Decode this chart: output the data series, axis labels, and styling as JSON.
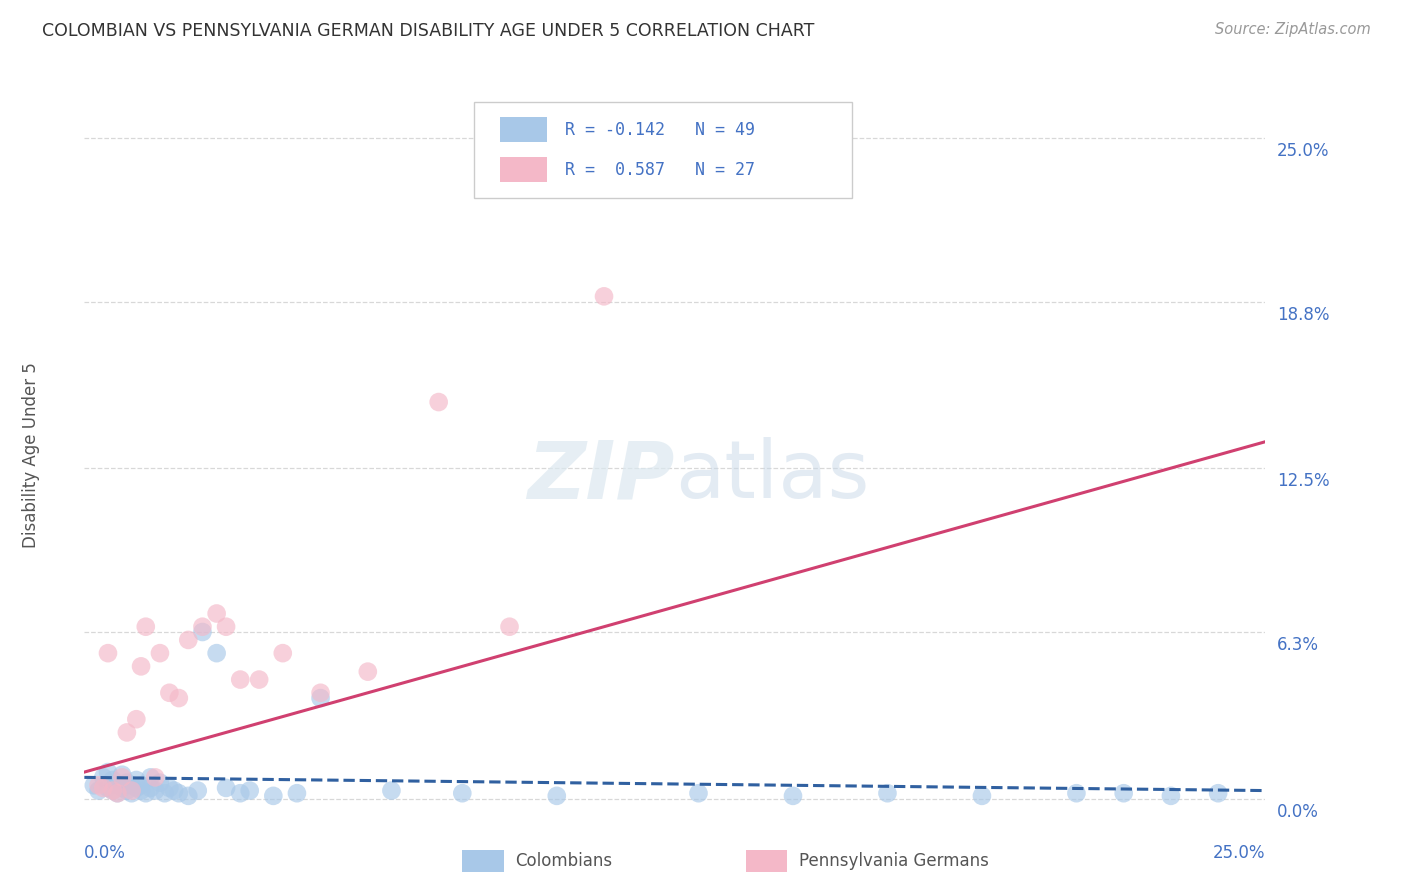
{
  "title": "COLOMBIAN VS PENNSYLVANIA GERMAN DISABILITY AGE UNDER 5 CORRELATION CHART",
  "source": "Source: ZipAtlas.com",
  "ylabel": "Disability Age Under 5",
  "xlim": [
    0.0,
    0.25
  ],
  "ylim": [
    -0.005,
    0.265
  ],
  "ytick_values": [
    0.0,
    0.063,
    0.125,
    0.188,
    0.25
  ],
  "ytick_labels": [
    "0.0%",
    "6.3%",
    "12.5%",
    "18.8%",
    "25.0%"
  ],
  "xtick_values": [
    0.0,
    0.25
  ],
  "xtick_labels": [
    "0.0%",
    "25.0%"
  ],
  "color_colombian": "#a8c8e8",
  "color_pa_german": "#f4b8c8",
  "color_line_colombian": "#3060a0",
  "color_line_pa_german": "#d04070",
  "background_color": "#ffffff",
  "grid_color": "#d8d8d8",
  "col_line_x": [
    0.0,
    0.25
  ],
  "col_line_y": [
    0.008,
    0.003
  ],
  "pa_line_x": [
    0.0,
    0.25
  ],
  "pa_line_y": [
    0.01,
    0.135
  ],
  "colombian_x": [
    0.002,
    0.003,
    0.004,
    0.005,
    0.005,
    0.006,
    0.006,
    0.007,
    0.007,
    0.008,
    0.008,
    0.009,
    0.009,
    0.01,
    0.01,
    0.011,
    0.011,
    0.012,
    0.012,
    0.013,
    0.014,
    0.014,
    0.015,
    0.016,
    0.017,
    0.018,
    0.019,
    0.02,
    0.022,
    0.024,
    0.025,
    0.028,
    0.03,
    0.033,
    0.035,
    0.04,
    0.045,
    0.05,
    0.065,
    0.08,
    0.1,
    0.13,
    0.15,
    0.17,
    0.19,
    0.21,
    0.22,
    0.23,
    0.24
  ],
  "colombian_y": [
    0.005,
    0.003,
    0.008,
    0.004,
    0.01,
    0.003,
    0.007,
    0.002,
    0.005,
    0.004,
    0.009,
    0.003,
    0.006,
    0.002,
    0.005,
    0.004,
    0.007,
    0.003,
    0.005,
    0.002,
    0.004,
    0.008,
    0.003,
    0.006,
    0.002,
    0.004,
    0.003,
    0.002,
    0.001,
    0.003,
    0.063,
    0.055,
    0.004,
    0.002,
    0.003,
    0.001,
    0.002,
    0.038,
    0.003,
    0.002,
    0.001,
    0.002,
    0.001,
    0.002,
    0.001,
    0.002,
    0.002,
    0.001,
    0.002
  ],
  "pa_german_x": [
    0.003,
    0.004,
    0.005,
    0.006,
    0.007,
    0.008,
    0.009,
    0.01,
    0.011,
    0.012,
    0.013,
    0.015,
    0.016,
    0.018,
    0.02,
    0.022,
    0.025,
    0.028,
    0.03,
    0.033,
    0.037,
    0.042,
    0.05,
    0.06,
    0.075,
    0.09,
    0.11
  ],
  "pa_german_y": [
    0.005,
    0.004,
    0.055,
    0.003,
    0.002,
    0.008,
    0.025,
    0.003,
    0.03,
    0.05,
    0.065,
    0.008,
    0.055,
    0.04,
    0.038,
    0.06,
    0.065,
    0.07,
    0.065,
    0.045,
    0.045,
    0.055,
    0.04,
    0.048,
    0.15,
    0.065,
    0.19
  ]
}
